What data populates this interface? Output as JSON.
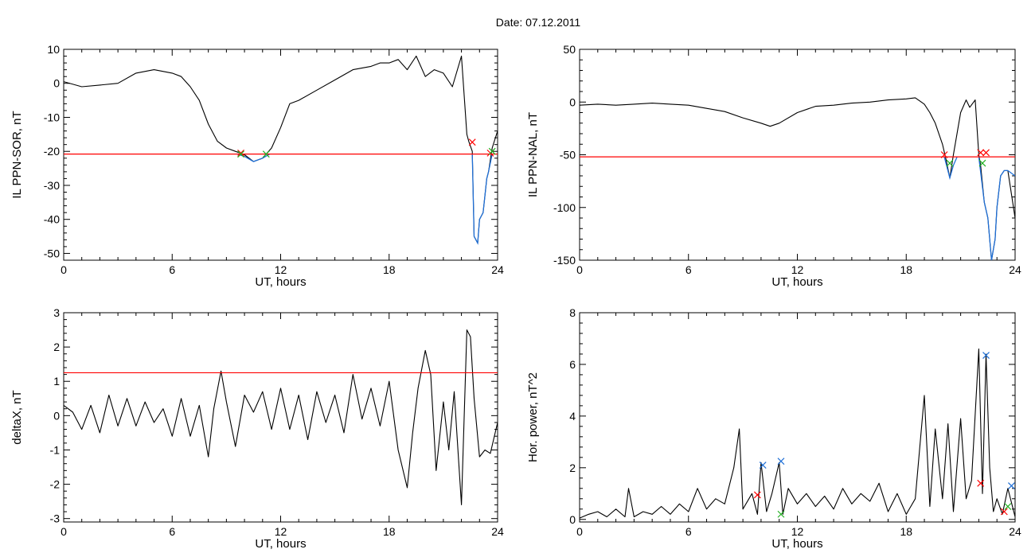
{
  "title": "Date:  07.12.2011",
  "colors": {
    "trace": "#000000",
    "threshold": "#ff0000",
    "highlight": "#1f6fd6",
    "marker_red": "#ff0000",
    "marker_green": "#22b022",
    "marker_blue": "#1f6fd6"
  },
  "chart_data": [
    {
      "id": "p1",
      "type": "line",
      "xlabel": "UT, hours",
      "ylabel": "IL PPN-SOR, nT",
      "xlim": [
        0,
        24
      ],
      "ylim": [
        -52,
        10
      ],
      "xticks": [
        0,
        6,
        12,
        18,
        24
      ],
      "yticks": [
        -50,
        -40,
        -30,
        -20,
        -10,
        0,
        10
      ],
      "threshold": -20.8,
      "series": [
        {
          "x": [
            0,
            1,
            2,
            3,
            4,
            5,
            6,
            6.5,
            7,
            7.5,
            8,
            8.5,
            9,
            9.5,
            10,
            10.5,
            11,
            11.5,
            12,
            12.5,
            13,
            14,
            15,
            16,
            17,
            17.5,
            18,
            18.5,
            19,
            19.5,
            20,
            20.5,
            21,
            21.5,
            22,
            22.3,
            22.4,
            22.6,
            22.7,
            22.9,
            23,
            23.2,
            23.4,
            23.5,
            23.7,
            24
          ],
          "y": [
            0.5,
            -1,
            -0.5,
            0,
            3,
            4,
            3,
            2,
            -1,
            -5,
            -12,
            -17,
            -19,
            -20,
            -21,
            -23,
            -22,
            -19,
            -13,
            -6,
            -5,
            -2,
            1,
            4,
            5,
            6,
            6,
            7,
            4,
            8,
            2,
            4,
            3,
            -1,
            8,
            -15,
            -17,
            -20,
            -45,
            -47,
            -40,
            -38,
            -28,
            -26,
            -19,
            -14
          ]
        }
      ],
      "highlight": [
        {
          "x": [
            9.6,
            10,
            10.5,
            11,
            11.4
          ],
          "y": [
            -20.8,
            -21.5,
            -23,
            -22,
            -20.8
          ]
        },
        {
          "x": [
            22.6,
            22.7,
            22.9,
            23,
            23.2,
            23.4,
            23.5,
            23.7
          ],
          "y": [
            -20.8,
            -45,
            -47,
            -40,
            -38,
            -28,
            -26,
            -20.8
          ]
        }
      ],
      "markers": [
        {
          "x": 9.8,
          "y": -20.5,
          "color": "red"
        },
        {
          "x": 9.8,
          "y": -20.8,
          "color": "green"
        },
        {
          "x": 11.2,
          "y": -20.8,
          "color": "green"
        },
        {
          "x": 22.6,
          "y": -17.3,
          "color": "red"
        },
        {
          "x": 23.6,
          "y": -20.5,
          "color": "red"
        },
        {
          "x": 23.7,
          "y": -20.0,
          "color": "green"
        }
      ]
    },
    {
      "id": "p2",
      "type": "line",
      "xlabel": "UT, hours",
      "ylabel": "IL PPN-NAL, nT",
      "xlim": [
        0,
        24
      ],
      "ylim": [
        -150,
        50
      ],
      "xticks": [
        0,
        6,
        12,
        18,
        24
      ],
      "yticks": [
        -150,
        -100,
        -50,
        0,
        50
      ],
      "threshold": -52,
      "series": [
        {
          "x": [
            0,
            1,
            2,
            3,
            4,
            5,
            6,
            7,
            8,
            9,
            10,
            10.5,
            11,
            12,
            13,
            14,
            15,
            16,
            17,
            18,
            18.5,
            19,
            19.3,
            19.6,
            20,
            20.2,
            20.4,
            20.6,
            21,
            21.3,
            21.5,
            21.8,
            22,
            22.1,
            22.3,
            22.5,
            22.7,
            22.9,
            23,
            23.2,
            23.4,
            23.6,
            24
          ],
          "y": [
            -3,
            -2,
            -3,
            -2,
            -1,
            -2,
            -3,
            -6,
            -9,
            -15,
            -20,
            -23,
            -20,
            -10,
            -4,
            -3,
            -1,
            0,
            2,
            3,
            4,
            -2,
            -10,
            -20,
            -40,
            -55,
            -72,
            -50,
            -10,
            2,
            -5,
            2,
            -50,
            -60,
            -95,
            -110,
            -150,
            -130,
            -100,
            -70,
            -65,
            -65,
            -110
          ]
        }
      ],
      "highlight": [
        {
          "x": [
            20.1,
            20.4,
            20.6,
            20.8
          ],
          "y": [
            -52,
            -72,
            -60,
            -52
          ]
        },
        {
          "x": [
            22.0,
            22.3,
            22.5,
            22.7,
            22.9,
            23,
            23.2,
            23.4,
            23.6,
            24
          ],
          "y": [
            -52,
            -95,
            -110,
            -150,
            -130,
            -100,
            -70,
            -65,
            -65,
            -70
          ]
        }
      ],
      "markers": [
        {
          "x": 20.1,
          "y": -50,
          "color": "red"
        },
        {
          "x": 20.4,
          "y": -58,
          "color": "green"
        },
        {
          "x": 22.1,
          "y": -48,
          "color": "red"
        },
        {
          "x": 22.4,
          "y": -48,
          "color": "red"
        },
        {
          "x": 22.2,
          "y": -58,
          "color": "green"
        }
      ]
    },
    {
      "id": "p3",
      "type": "line",
      "xlabel": "UT, hours",
      "ylabel": "deltaX, nT",
      "xlim": [
        0,
        24
      ],
      "ylim": [
        -3.1,
        3
      ],
      "xticks": [
        0,
        6,
        12,
        18,
        24
      ],
      "yticks": [
        -3,
        -2,
        -1,
        0,
        1,
        2,
        3
      ],
      "threshold": 1.25,
      "series": [
        {
          "x": [
            0,
            0.5,
            1,
            1.5,
            2,
            2.5,
            3,
            3.5,
            4,
            4.5,
            5,
            5.5,
            6,
            6.5,
            7,
            7.5,
            8,
            8.3,
            8.7,
            9,
            9.5,
            10,
            10.5,
            11,
            11.5,
            12,
            12.5,
            13,
            13.5,
            14,
            14.5,
            15,
            15.5,
            16,
            16.5,
            17,
            17.5,
            18,
            18.5,
            19,
            19.3,
            19.6,
            20,
            20.3,
            20.6,
            21,
            21.3,
            21.6,
            22,
            22.3,
            22.5,
            22.7,
            23,
            23.3,
            23.6,
            24
          ],
          "y": [
            0.3,
            0.1,
            -0.4,
            0.3,
            -0.5,
            0.6,
            -0.3,
            0.5,
            -0.3,
            0.4,
            -0.2,
            0.2,
            -0.6,
            0.5,
            -0.6,
            0.3,
            -1.2,
            0.2,
            1.3,
            0.4,
            -0.9,
            0.6,
            0.1,
            0.7,
            -0.4,
            0.8,
            -0.4,
            0.6,
            -0.7,
            0.7,
            -0.2,
            0.6,
            -0.5,
            1.2,
            -0.1,
            0.8,
            -0.3,
            1.0,
            -1.0,
            -2.1,
            -0.5,
            0.8,
            1.9,
            1.2,
            -1.6,
            0.4,
            -1.0,
            0.7,
            -2.6,
            2.5,
            2.3,
            0.5,
            -1.2,
            -1.0,
            -1.1,
            -0.2
          ]
        }
      ],
      "markers": []
    },
    {
      "id": "p4",
      "type": "line",
      "xlabel": "UT, hours",
      "ylabel": "Hor. power, nT^2",
      "xlim": [
        0,
        24
      ],
      "ylim": [
        -0.1,
        8
      ],
      "xticks": [
        0,
        6,
        12,
        18,
        24
      ],
      "yticks": [
        0,
        2,
        4,
        6,
        8
      ],
      "series": [
        {
          "x": [
            0,
            0.5,
            1,
            1.5,
            2,
            2.5,
            2.7,
            3,
            3.5,
            4,
            4.5,
            5,
            5.5,
            6,
            6.5,
            7,
            7.5,
            8,
            8.5,
            8.8,
            9,
            9.5,
            9.8,
            10,
            10.3,
            10.6,
            11,
            11.2,
            11.5,
            12,
            12.5,
            13,
            13.5,
            14,
            14.5,
            15,
            15.5,
            16,
            16.5,
            17,
            17.5,
            18,
            18.5,
            19,
            19.3,
            19.6,
            20,
            20.3,
            20.6,
            21,
            21.3,
            21.6,
            22,
            22.2,
            22.4,
            22.6,
            22.8,
            23,
            23.3,
            23.6,
            24
          ],
          "y": [
            0.05,
            0.2,
            0.3,
            0.1,
            0.4,
            0.1,
            1.2,
            0.1,
            0.3,
            0.2,
            0.5,
            0.2,
            0.6,
            0.3,
            1.2,
            0.4,
            0.8,
            0.6,
            2.0,
            3.5,
            0.4,
            1.0,
            0.2,
            2.2,
            0.3,
            1.0,
            2.2,
            0.2,
            1.2,
            0.6,
            1.0,
            0.5,
            0.9,
            0.4,
            1.2,
            0.6,
            1.0,
            0.7,
            1.4,
            0.3,
            1.0,
            0.2,
            0.8,
            4.8,
            0.5,
            3.5,
            0.8,
            3.7,
            0.3,
            3.9,
            0.8,
            1.5,
            6.6,
            1.0,
            6.4,
            2.0,
            0.3,
            0.8,
            0.2,
            1.2,
            0.1
          ]
        }
      ],
      "markers": [
        {
          "x": 9.8,
          "y": 0.95,
          "color": "red"
        },
        {
          "x": 10.1,
          "y": 2.1,
          "color": "blue"
        },
        {
          "x": 11.1,
          "y": 2.25,
          "color": "blue"
        },
        {
          "x": 11.1,
          "y": 0.2,
          "color": "green"
        },
        {
          "x": 22.1,
          "y": 1.4,
          "color": "red"
        },
        {
          "x": 22.4,
          "y": 6.35,
          "color": "blue"
        },
        {
          "x": 23.4,
          "y": 0.3,
          "color": "red"
        },
        {
          "x": 23.6,
          "y": 0.5,
          "color": "green"
        },
        {
          "x": 23.8,
          "y": 1.3,
          "color": "blue"
        }
      ]
    }
  ]
}
